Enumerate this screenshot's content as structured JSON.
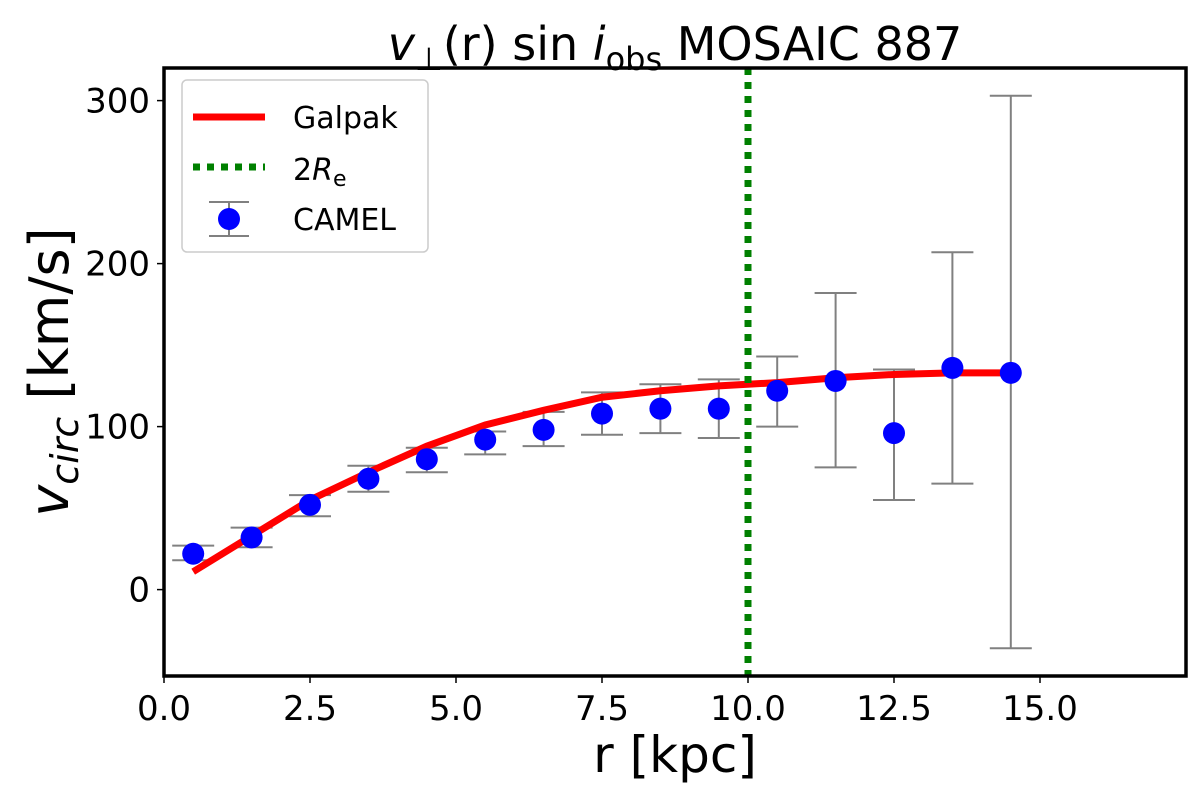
{
  "chart_data": {
    "type": "scatter",
    "title": {
      "v": "v",
      "perp": "⊥",
      "rest": "(r) sin ",
      "i": "i",
      "sub": "obs",
      "tail": " MOSAIC 887"
    },
    "xlabel": "r [kpc]",
    "ylabel": {
      "v": "v",
      "sub": "circ",
      "unit": " [km/s]"
    },
    "xlim": [
      0,
      17.5
    ],
    "ylim": [
      -53,
      320
    ],
    "xticks": [
      "0.0",
      "2.5",
      "5.0",
      "7.5",
      "10.0",
      "12.5",
      "15.0"
    ],
    "xtick_values": [
      0,
      2.5,
      5,
      7.5,
      10,
      12.5,
      15
    ],
    "yticks": [
      "0",
      "100",
      "200",
      "300"
    ],
    "ytick_values": [
      0,
      100,
      200,
      300
    ],
    "grid": false,
    "legend_position": "top-left",
    "legend": {
      "galpak": "Galpak",
      "re_prefix": "2",
      "re_R": "R",
      "re_sub": "e",
      "camel": "CAMEL"
    },
    "series": [
      {
        "name": "Galpak",
        "kind": "line",
        "color": "#ff0000",
        "x": [
          0.5,
          1.5,
          2.5,
          3.5,
          4.5,
          5.5,
          6.5,
          7.5,
          8.5,
          9.5,
          10.5,
          11.5,
          12.5,
          13.5,
          14.5
        ],
        "y": [
          11,
          33,
          55,
          72,
          88,
          101,
          110,
          118,
          122,
          125,
          127,
          130,
          132,
          133,
          133
        ]
      },
      {
        "name": "CAMEL",
        "kind": "errorbar",
        "color": "#0000ff",
        "error_color": "#808080",
        "x": [
          0.5,
          1.5,
          2.5,
          3.5,
          4.5,
          5.5,
          6.5,
          7.5,
          8.5,
          9.5,
          10.5,
          11.5,
          12.5,
          13.5,
          14.5
        ],
        "y": [
          22,
          32,
          52,
          68,
          80,
          92,
          98,
          108,
          111,
          111,
          122,
          128,
          96,
          136,
          133
        ],
        "y_upper": [
          27,
          38,
          58,
          76,
          87,
          97,
          109,
          121,
          126,
          129,
          143,
          182,
          135,
          207,
          303
        ],
        "y_lower": [
          18,
          26,
          45,
          60,
          72,
          83,
          88,
          95,
          96,
          93,
          100,
          75,
          55,
          65,
          -36
        ]
      },
      {
        "name": "2Re",
        "kind": "vline",
        "color": "#008000",
        "x": 10.0
      }
    ]
  }
}
